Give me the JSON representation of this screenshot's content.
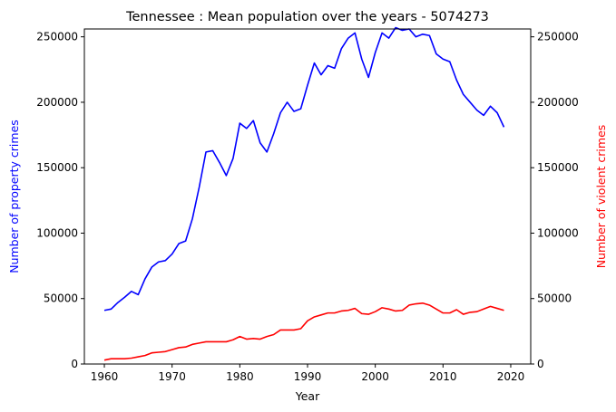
{
  "chart_data": {
    "type": "line",
    "title": "Tennessee : Mean population over the years - 5074273",
    "xlabel": "Year",
    "ylabel_left": "Number of property crimes",
    "ylabel_right": "Number of violent crimes",
    "xlim": [
      1960,
      2020
    ],
    "ylim": [
      0,
      256000
    ],
    "x_ticks": [
      1960,
      1970,
      1980,
      1990,
      2000,
      2010,
      2020
    ],
    "y_ticks": [
      0,
      50000,
      100000,
      150000,
      200000,
      250000
    ],
    "grid": false,
    "legend": "none",
    "colors": {
      "property": "#0000ff",
      "violent": "#ff0000",
      "axis": "#000000",
      "background": "#ffffff"
    },
    "series": [
      {
        "key": "property",
        "x": [
          1960,
          1961,
          1962,
          1963,
          1964,
          1965,
          1966,
          1967,
          1968,
          1969,
          1970,
          1971,
          1972,
          1973,
          1974,
          1975,
          1976,
          1977,
          1978,
          1979,
          1980,
          1981,
          1982,
          1983,
          1984,
          1985,
          1986,
          1987,
          1988,
          1989,
          1990,
          1991,
          1992,
          1993,
          1994,
          1995,
          1996,
          1997,
          1998,
          1999,
          2000,
          2001,
          2002,
          2003,
          2004,
          2005,
          2006,
          2007,
          2008,
          2009,
          2010,
          2011,
          2012,
          2013,
          2014,
          2015,
          2016,
          2017,
          2018,
          2019
        ],
        "values": [
          41000,
          42000,
          47000,
          51000,
          55500,
          53000,
          65000,
          74000,
          78000,
          79000,
          84000,
          92000,
          94000,
          111000,
          135000,
          162000,
          163000,
          154000,
          144000,
          157000,
          184000,
          180000,
          186000,
          169000,
          162000,
          176000,
          192000,
          200000,
          193000,
          195000,
          213000,
          230000,
          221000,
          228000,
          226000,
          241000,
          249000,
          253000,
          233000,
          219000,
          238000,
          253000,
          249000,
          257000,
          255000,
          256000,
          250000,
          252000,
          251000,
          237000,
          233000,
          231000,
          217000,
          206000,
          200000,
          194000,
          190000,
          197000,
          192000,
          181000
        ]
      },
      {
        "key": "violent",
        "x": [
          1960,
          1961,
          1962,
          1963,
          1964,
          1965,
          1966,
          1967,
          1968,
          1969,
          1970,
          1971,
          1972,
          1973,
          1974,
          1975,
          1976,
          1977,
          1978,
          1979,
          1980,
          1981,
          1982,
          1983,
          1984,
          1985,
          1986,
          1987,
          1988,
          1989,
          1990,
          1991,
          1992,
          1993,
          1994,
          1995,
          1996,
          1997,
          1998,
          1999,
          2000,
          2001,
          2002,
          2003,
          2004,
          2005,
          2006,
          2007,
          2008,
          2009,
          2010,
          2011,
          2012,
          2013,
          2014,
          2015,
          2016,
          2017,
          2018,
          2019
        ],
        "values": [
          3000,
          4000,
          4000,
          4000,
          4500,
          5500,
          6500,
          8500,
          9000,
          9500,
          11000,
          12500,
          13000,
          15000,
          16000,
          17000,
          17000,
          17000,
          17000,
          18500,
          21000,
          19000,
          19500,
          19000,
          21000,
          22500,
          26000,
          26000,
          26000,
          27000,
          33000,
          36000,
          37500,
          39000,
          39000,
          40500,
          41000,
          42500,
          38500,
          38000,
          40000,
          43000,
          42000,
          40500,
          41000,
          45000,
          46000,
          46500,
          45000,
          42000,
          39000,
          39000,
          41500,
          38000,
          39500,
          40000,
          42000,
          44000,
          42500,
          41000
        ]
      }
    ]
  }
}
